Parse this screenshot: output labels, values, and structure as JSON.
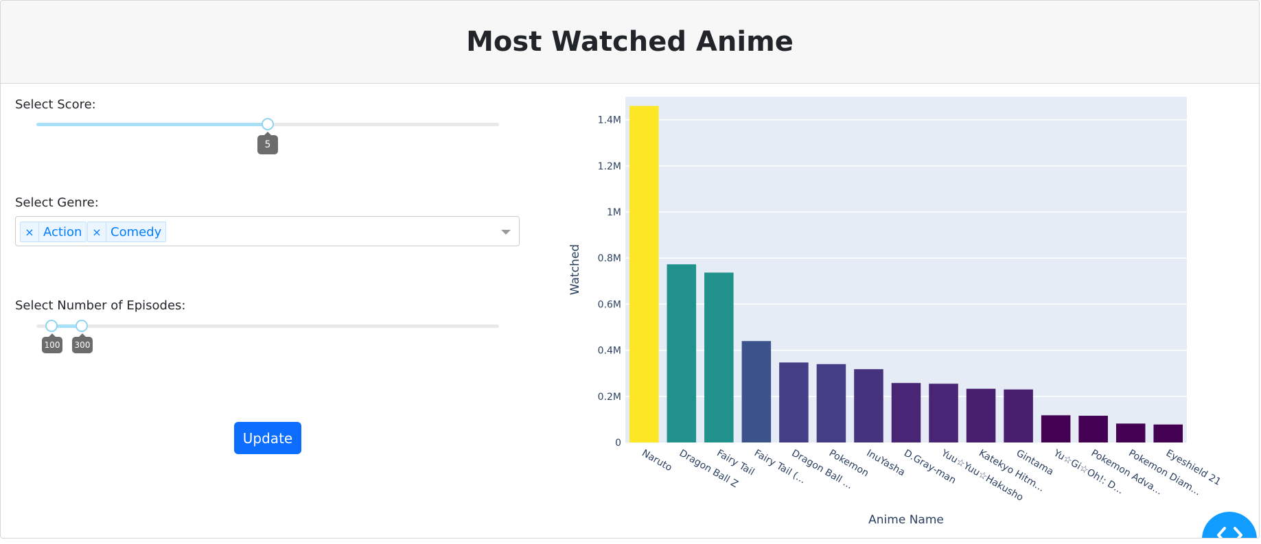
{
  "header": {
    "title": "Most Watched Anime"
  },
  "score_filter": {
    "label": "Select Score:",
    "value": "5",
    "value_fraction": 0.5
  },
  "genre_filter": {
    "label": "Select Genre:",
    "selected": [
      {
        "remove": "×",
        "label": "Action"
      },
      {
        "remove": "×",
        "label": "Comedy"
      }
    ]
  },
  "episodes_filter": {
    "label": "Select Number of Episodes:",
    "low": "100",
    "high": "300"
  },
  "update_button": {
    "label": "Update"
  },
  "colors": {
    "accent": "#0d6efd",
    "plot_bg": "#e5ecf6",
    "slider_fill": "#a8e0f7",
    "tag_text": "#007eff"
  },
  "chart_data": {
    "type": "bar",
    "xlabel": "Anime Name",
    "ylabel": "Watched",
    "ylim": [
      0,
      1500000
    ],
    "y_ticks": [
      {
        "value": 0,
        "label": "0"
      },
      {
        "value": 200000,
        "label": "0.2M"
      },
      {
        "value": 400000,
        "label": "0.4M"
      },
      {
        "value": 600000,
        "label": "0.6M"
      },
      {
        "value": 800000,
        "label": "0.8M"
      },
      {
        "value": 1000000,
        "label": "1M"
      },
      {
        "value": 1200000,
        "label": "1.2M"
      },
      {
        "value": 1400000,
        "label": "1.4M"
      }
    ],
    "grid": true,
    "categories": [
      "Naruto",
      "Dragon Ball Z",
      "Fairy Tail",
      "Fairy Tail (...",
      "Dragon Ball ...",
      "Pokemon",
      "InuYasha",
      "D.Gray-man",
      "Yuu☆Yuu☆Hakusho",
      "Katekyo Hitm...",
      "Gintama",
      "Yu☆Gi☆Oh!: D...",
      "Pokemon Adva...",
      "Pokemon Diam...",
      "Eyeshield 21"
    ],
    "values": [
      1460000,
      773000,
      737000,
      440000,
      347000,
      340000,
      318000,
      258000,
      255000,
      233000,
      230000,
      118000,
      116000,
      82000,
      78000
    ],
    "bar_colors": [
      "#fde725",
      "#21918c",
      "#21918c",
      "#3b528b",
      "#433e85",
      "#433e85",
      "#46337e",
      "#482575",
      "#482575",
      "#481e6e",
      "#481e6e",
      "#440154",
      "#440154",
      "#440154",
      "#440154"
    ]
  }
}
